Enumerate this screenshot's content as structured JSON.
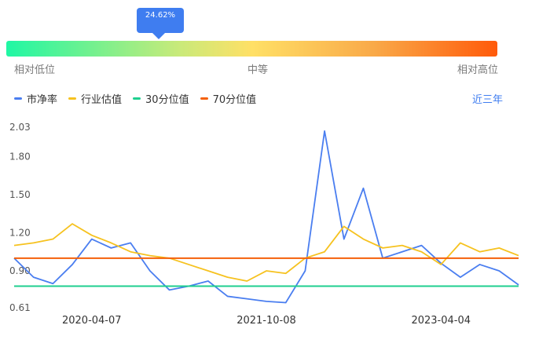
{
  "indicator": {
    "percentile_label": "24.62%",
    "percentile": 24.62
  },
  "scale": {
    "low": "相对低位",
    "mid": "中等",
    "high": "相对高位"
  },
  "legend": [
    {
      "label": "市净率",
      "color": "#4a7ef0"
    },
    {
      "label": "行业估值",
      "color": "#f6c21f"
    },
    {
      "label": "30分位值",
      "color": "#1fcf8f"
    },
    {
      "label": "70分位值",
      "color": "#f4600a"
    }
  ],
  "range_link": "近三年",
  "chart_data": {
    "type": "line",
    "x": [
      "2019-09",
      "2019-11",
      "2020-01",
      "2020-02",
      "2020-04-07",
      "2020-06",
      "2020-08",
      "2020-10",
      "2020-12",
      "2021-02",
      "2021-04",
      "2021-06",
      "2021-08",
      "2021-10-08",
      "2021-12",
      "2022-02",
      "2022-04",
      "2022-06",
      "2022-08",
      "2022-10",
      "2022-12",
      "2023-02",
      "2023-04-04",
      "2023-06",
      "2023-08",
      "2023-10",
      "2023-12"
    ],
    "x_ticks": [
      "2020-04-07",
      "2021-10-08",
      "2023-04-04"
    ],
    "y_ticks": [
      "2.03",
      "1.80",
      "1.50",
      "1.20",
      "0.90",
      "0.61"
    ],
    "ylim": [
      0.61,
      2.03
    ],
    "series": [
      {
        "name": "市净率",
        "values": [
          1.0,
          0.85,
          0.8,
          0.95,
          1.15,
          1.08,
          1.12,
          0.9,
          0.75,
          0.78,
          0.82,
          0.7,
          0.68,
          0.66,
          0.65,
          0.9,
          2.0,
          1.15,
          1.55,
          1.0,
          1.05,
          1.1,
          0.96,
          0.85,
          0.95,
          0.9,
          0.79
        ]
      },
      {
        "name": "行业估值",
        "values": [
          1.1,
          1.12,
          1.15,
          1.27,
          1.18,
          1.12,
          1.05,
          1.02,
          1.0,
          0.95,
          0.9,
          0.85,
          0.82,
          0.9,
          0.88,
          1.0,
          1.05,
          1.25,
          1.15,
          1.08,
          1.1,
          1.05,
          0.95,
          1.12,
          1.05,
          1.08,
          1.02
        ]
      },
      {
        "name": "30分位值",
        "values": [
          0.78,
          0.78,
          0.78,
          0.78,
          0.78,
          0.78,
          0.78,
          0.78,
          0.78,
          0.78,
          0.78,
          0.78,
          0.78,
          0.78,
          0.78,
          0.78,
          0.78,
          0.78,
          0.78,
          0.78,
          0.78,
          0.78,
          0.78,
          0.78,
          0.78,
          0.78,
          0.78
        ]
      },
      {
        "name": "70分位值",
        "values": [
          1.0,
          1.0,
          1.0,
          1.0,
          1.0,
          1.0,
          1.0,
          1.0,
          1.0,
          1.0,
          1.0,
          1.0,
          1.0,
          1.0,
          1.0,
          1.0,
          1.0,
          1.0,
          1.0,
          1.0,
          1.0,
          1.0,
          1.0,
          1.0,
          1.0,
          1.0,
          1.0
        ]
      }
    ]
  }
}
